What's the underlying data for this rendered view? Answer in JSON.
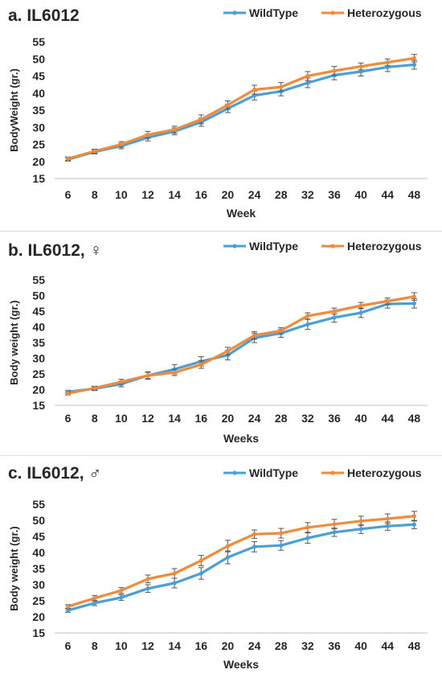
{
  "colors": {
    "wildtype": "#4a9fd4",
    "heterozygous": "#f08a3c",
    "error_bar": "#555555",
    "axis": "#bfbfbf",
    "text": "#262626"
  },
  "chart_data": [
    {
      "type": "line",
      "title": "a. IL6012",
      "xlabel": "Week",
      "ylabel": "BodyWeight (gr.)",
      "categories": [
        "6",
        "8",
        "10",
        "12",
        "14",
        "16",
        "20",
        "24",
        "28",
        "32",
        "36",
        "40",
        "44",
        "48"
      ],
      "y_ticks": [
        "15",
        "20",
        "25",
        "30",
        "35",
        "40",
        "45",
        "50",
        "55"
      ],
      "ylim": [
        15,
        55
      ],
      "legend_position": "top-right",
      "series": [
        {
          "name": "WildType",
          "color_key": "wildtype",
          "values": [
            20.6,
            22.8,
            24.5,
            27.0,
            28.8,
            31.5,
            35.5,
            39.3,
            40.5,
            43.0,
            45.2,
            46.3,
            47.6,
            48.3
          ],
          "errors": [
            0.5,
            0.6,
            0.8,
            1.0,
            1.0,
            1.2,
            1.2,
            1.3,
            1.3,
            1.4,
            1.3,
            1.3,
            1.3,
            1.3
          ]
        },
        {
          "name": "Heterozygous",
          "color_key": "heterozygous",
          "values": [
            20.8,
            23.0,
            25.0,
            27.8,
            29.3,
            32.3,
            36.5,
            41.0,
            41.8,
            45.0,
            46.5,
            47.8,
            49.0,
            50.2
          ],
          "errors": [
            0.5,
            0.6,
            0.8,
            1.0,
            1.0,
            1.3,
            1.2,
            1.3,
            1.3,
            1.3,
            1.3,
            1.0,
            1.0,
            1.1
          ]
        }
      ]
    },
    {
      "type": "line",
      "title": "b. IL6012, ♀",
      "xlabel": "Weeks",
      "ylabel": "Body weight (gr.)",
      "categories": [
        "6",
        "8",
        "10",
        "12",
        "14",
        "16",
        "20",
        "24",
        "28",
        "32",
        "36",
        "40",
        "44",
        "48"
      ],
      "y_ticks": [
        "15",
        "20",
        "25",
        "30",
        "35",
        "40",
        "45",
        "50",
        "55"
      ],
      "ylim": [
        15,
        55
      ],
      "legend_position": "top-right",
      "series": [
        {
          "name": "WildType",
          "color_key": "wildtype",
          "values": [
            19.3,
            20.3,
            21.8,
            24.5,
            26.5,
            29.0,
            31.0,
            36.5,
            38.0,
            40.8,
            43.0,
            44.5,
            47.3,
            47.5
          ],
          "errors": [
            0.5,
            0.6,
            0.9,
            1.2,
            1.5,
            1.5,
            1.5,
            1.5,
            1.3,
            1.6,
            1.5,
            1.5,
            1.3,
            1.5
          ]
        },
        {
          "name": "Heterozygous",
          "color_key": "heterozygous",
          "values": [
            18.8,
            20.5,
            22.5,
            24.5,
            25.5,
            28.0,
            32.3,
            37.3,
            38.8,
            43.5,
            45.0,
            46.8,
            48.2,
            49.7
          ],
          "errors": [
            0.5,
            0.6,
            0.8,
            1.0,
            1.0,
            1.2,
            1.2,
            1.2,
            1.0,
            1.0,
            1.0,
            1.0,
            1.0,
            1.2
          ]
        }
      ]
    },
    {
      "type": "line",
      "title": "c. IL6012, ♂",
      "xlabel": "Weeks",
      "ylabel": "Body weight (gr.)",
      "categories": [
        "6",
        "8",
        "10",
        "12",
        "14",
        "16",
        "20",
        "24",
        "28",
        "32",
        "36",
        "40",
        "44",
        "48"
      ],
      "y_ticks": [
        "15",
        "20",
        "25",
        "30",
        "35",
        "40",
        "45",
        "50",
        "55"
      ],
      "ylim": [
        15,
        55
      ],
      "legend_position": "top-right",
      "series": [
        {
          "name": "WildType",
          "color_key": "wildtype",
          "values": [
            22.0,
            24.3,
            26.0,
            28.8,
            30.5,
            33.5,
            38.5,
            41.8,
            42.2,
            44.5,
            46.3,
            47.3,
            48.2,
            48.7
          ],
          "errors": [
            0.6,
            0.8,
            0.9,
            1.2,
            1.5,
            1.8,
            2.0,
            1.6,
            1.5,
            1.6,
            1.3,
            1.4,
            1.3,
            1.3
          ]
        },
        {
          "name": "Heterozygous",
          "color_key": "heterozygous",
          "values": [
            23.2,
            25.8,
            28.2,
            31.8,
            33.5,
            37.5,
            42.0,
            45.7,
            46.0,
            47.8,
            48.8,
            49.8,
            50.5,
            51.3
          ],
          "errors": [
            0.6,
            0.8,
            0.9,
            1.2,
            1.5,
            1.6,
            1.8,
            1.3,
            1.5,
            1.5,
            1.5,
            1.5,
            1.5,
            1.5
          ]
        }
      ]
    }
  ]
}
